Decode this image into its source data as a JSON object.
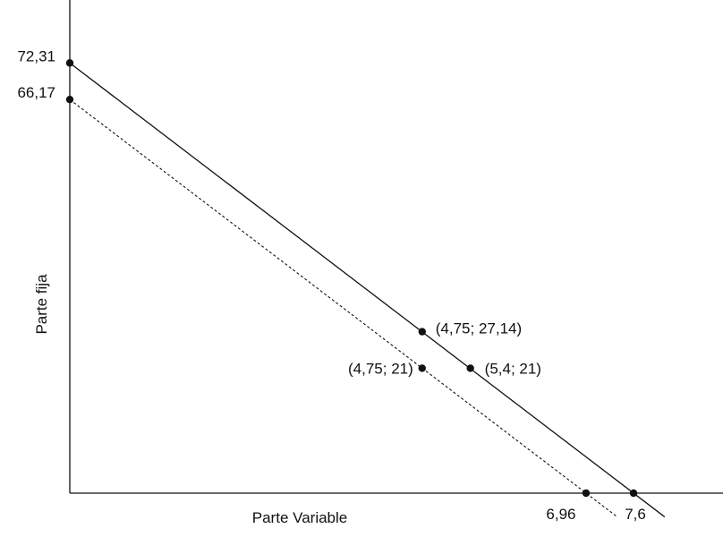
{
  "chart_data": {
    "type": "line",
    "title": "",
    "xlabel": "Parte Variable",
    "ylabel": "Parte fija",
    "xlim": [
      0,
      9.4
    ],
    "ylim": [
      0,
      83
    ],
    "grid": false,
    "legend": "none",
    "series": [
      {
        "style": "solid",
        "points": [
          [
            0,
            72.31
          ],
          [
            7.6,
            0
          ]
        ]
      },
      {
        "style": "dashed",
        "points": [
          [
            0,
            66.17
          ],
          [
            6.96,
            0
          ]
        ]
      }
    ],
    "points": [
      {
        "x": 0,
        "y": 72.31,
        "label": "72,31",
        "anchor": "yaxis"
      },
      {
        "x": 0,
        "y": 66.17,
        "label": "66,17",
        "anchor": "yaxis"
      },
      {
        "x": 7.6,
        "y": 0,
        "label": "7,6",
        "anchor": "xaxis"
      },
      {
        "x": 6.96,
        "y": 0,
        "label": "6,96",
        "anchor": "xaxis"
      },
      {
        "x": 4.75,
        "y": 27.14,
        "label": "(4,75; 27,14)",
        "anchor": "right"
      },
      {
        "x": 4.75,
        "y": 21,
        "label": "(4,75; 21)",
        "anchor": "left"
      },
      {
        "x": 5.4,
        "y": 21,
        "label": "(5,4; 21)",
        "anchor": "right"
      }
    ],
    "colors": {
      "line": "#111111",
      "point": "#111111"
    }
  }
}
